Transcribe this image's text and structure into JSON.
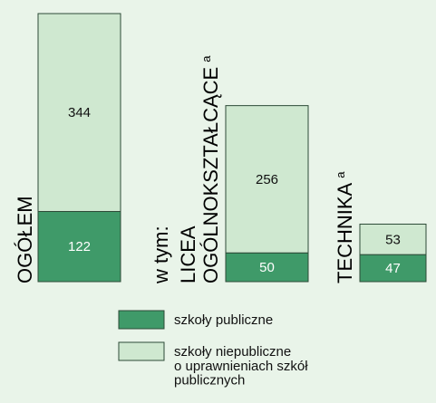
{
  "chart_data": {
    "type": "stacked-bar",
    "categories": [
      [
        "OGÓŁEM"
      ],
      [
        "LICEA",
        "OGÓLNOKSZTAŁCĄCE"
      ],
      [
        "TECHNIKA"
      ]
    ],
    "category_notes": [
      null,
      "a",
      "a"
    ],
    "group_label": "w tym:",
    "series": [
      {
        "name": "szkoły publiczne",
        "color": "#3f9a69",
        "values": [
          122,
          50,
          47
        ]
      },
      {
        "name": "szkoły niepubliczne\no uprawnieniach szkół\npublicznych",
        "color": "#cfe8d0",
        "values": [
          344,
          256,
          53
        ]
      }
    ]
  }
}
